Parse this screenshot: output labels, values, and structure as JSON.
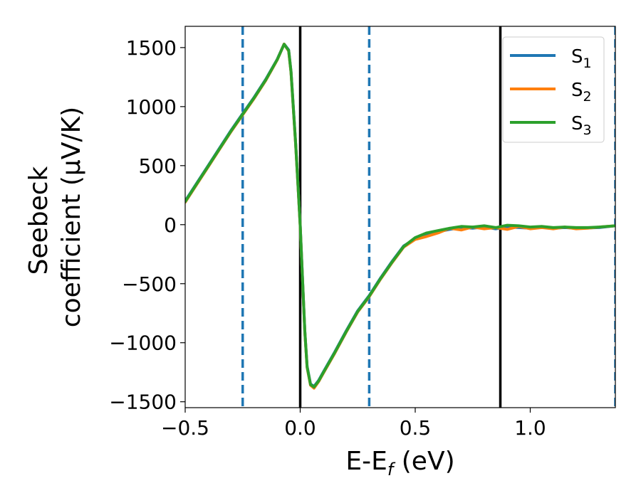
{
  "chart_data": {
    "type": "line",
    "xlabel": "E-E",
    "xlabel_sub": "f",
    "xlabel_unit": " (eV)",
    "ylabel_line1": "Seebeck",
    "ylabel_line2": "coefficient  (μV/K)",
    "xlim": [
      -0.5,
      1.37
    ],
    "ylim": [
      -1550,
      1680
    ],
    "x_ticks": [
      -0.5,
      0.0,
      0.5,
      1.0
    ],
    "x_tick_labels": [
      "−0.5",
      "0.0",
      "0.5",
      "1.0"
    ],
    "y_ticks": [
      -1500,
      -1000,
      -500,
      0,
      500,
      1000,
      1500
    ],
    "y_tick_labels": [
      "−1500",
      "−1000",
      "−500",
      "0",
      "500",
      "1000",
      "1500"
    ],
    "grid": false,
    "legend_position": "top-right",
    "vertical_lines": [
      {
        "x": -0.25,
        "style": "dashed",
        "color": "#1f77b4"
      },
      {
        "x": 0.0,
        "style": "solid",
        "color": "#000000"
      },
      {
        "x": 0.3,
        "style": "dashed",
        "color": "#1f77b4"
      },
      {
        "x": 0.87,
        "style": "solid",
        "color": "#000000"
      },
      {
        "x": 1.37,
        "style": "dashed",
        "color": "#1f77b4"
      }
    ],
    "series": [
      {
        "name": "S",
        "sub": "1",
        "color": "#1f77b4",
        "x": [
          -0.5,
          -0.45,
          -0.4,
          -0.35,
          -0.3,
          -0.25,
          -0.2,
          -0.15,
          -0.1,
          -0.07,
          -0.05,
          -0.04,
          -0.03,
          -0.02,
          -0.01,
          0.0,
          0.01,
          0.02,
          0.03,
          0.045,
          0.06,
          0.08,
          0.1,
          0.15,
          0.2,
          0.25,
          0.3,
          0.35,
          0.4,
          0.45,
          0.5,
          0.55,
          0.6,
          0.65,
          0.7,
          0.75,
          0.8,
          0.85,
          0.9,
          0.95,
          1.0,
          1.05,
          1.1,
          1.15,
          1.2,
          1.25,
          1.3,
          1.37
        ],
        "y": [
          200,
          350,
          500,
          650,
          800,
          940,
          1080,
          1230,
          1400,
          1530,
          1480,
          1300,
          1000,
          700,
          350,
          0,
          -450,
          -900,
          -1200,
          -1350,
          -1370,
          -1320,
          -1250,
          -1080,
          -900,
          -730,
          -600,
          -450,
          -310,
          -180,
          -120,
          -90,
          -60,
          -40,
          -25,
          -30,
          -20,
          -35,
          -20,
          -25,
          -30,
          -20,
          -30,
          -25,
          -30,
          -28,
          -25,
          -10
        ]
      },
      {
        "name": "S",
        "sub": "2",
        "color": "#ff7f0e",
        "x": [
          -0.5,
          -0.45,
          -0.4,
          -0.35,
          -0.3,
          -0.25,
          -0.2,
          -0.15,
          -0.1,
          -0.07,
          -0.05,
          -0.04,
          -0.03,
          -0.02,
          -0.01,
          0.0,
          0.01,
          0.02,
          0.03,
          0.045,
          0.06,
          0.08,
          0.1,
          0.15,
          0.2,
          0.25,
          0.3,
          0.35,
          0.4,
          0.45,
          0.5,
          0.55,
          0.6,
          0.65,
          0.7,
          0.75,
          0.8,
          0.85,
          0.9,
          0.95,
          1.0,
          1.05,
          1.1,
          1.15,
          1.2,
          1.25,
          1.3,
          1.37
        ],
        "y": [
          190,
          340,
          490,
          640,
          790,
          930,
          1070,
          1220,
          1395,
          1530,
          1470,
          1290,
          990,
          690,
          340,
          -10,
          -460,
          -910,
          -1210,
          -1360,
          -1385,
          -1330,
          -1260,
          -1090,
          -910,
          -740,
          -610,
          -460,
          -320,
          -190,
          -125,
          -100,
          -70,
          -30,
          -45,
          -20,
          -35,
          -25,
          -40,
          -15,
          -35,
          -25,
          -35,
          -20,
          -35,
          -30,
          -20,
          -10
        ]
      },
      {
        "name": "S",
        "sub": "3",
        "color": "#2ca02c",
        "x": [
          -0.5,
          -0.45,
          -0.4,
          -0.35,
          -0.3,
          -0.25,
          -0.2,
          -0.15,
          -0.1,
          -0.07,
          -0.05,
          -0.04,
          -0.03,
          -0.02,
          -0.01,
          0.0,
          0.01,
          0.02,
          0.03,
          0.045,
          0.06,
          0.08,
          0.1,
          0.15,
          0.2,
          0.25,
          0.3,
          0.35,
          0.4,
          0.45,
          0.5,
          0.55,
          0.6,
          0.65,
          0.7,
          0.75,
          0.8,
          0.85,
          0.9,
          0.95,
          1.0,
          1.05,
          1.1,
          1.15,
          1.2,
          1.25,
          1.3,
          1.37
        ],
        "y": [
          195,
          345,
          495,
          645,
          795,
          935,
          1075,
          1225,
          1398,
          1528,
          1475,
          1295,
          995,
          695,
          345,
          -5,
          -455,
          -905,
          -1205,
          -1355,
          -1375,
          -1325,
          -1255,
          -1085,
          -905,
          -735,
          -605,
          -455,
          -315,
          -185,
          -110,
          -70,
          -50,
          -30,
          -15,
          -20,
          -10,
          -25,
          -5,
          -10,
          -20,
          -15,
          -25,
          -20,
          -25,
          -25,
          -20,
          -10
        ]
      }
    ]
  }
}
